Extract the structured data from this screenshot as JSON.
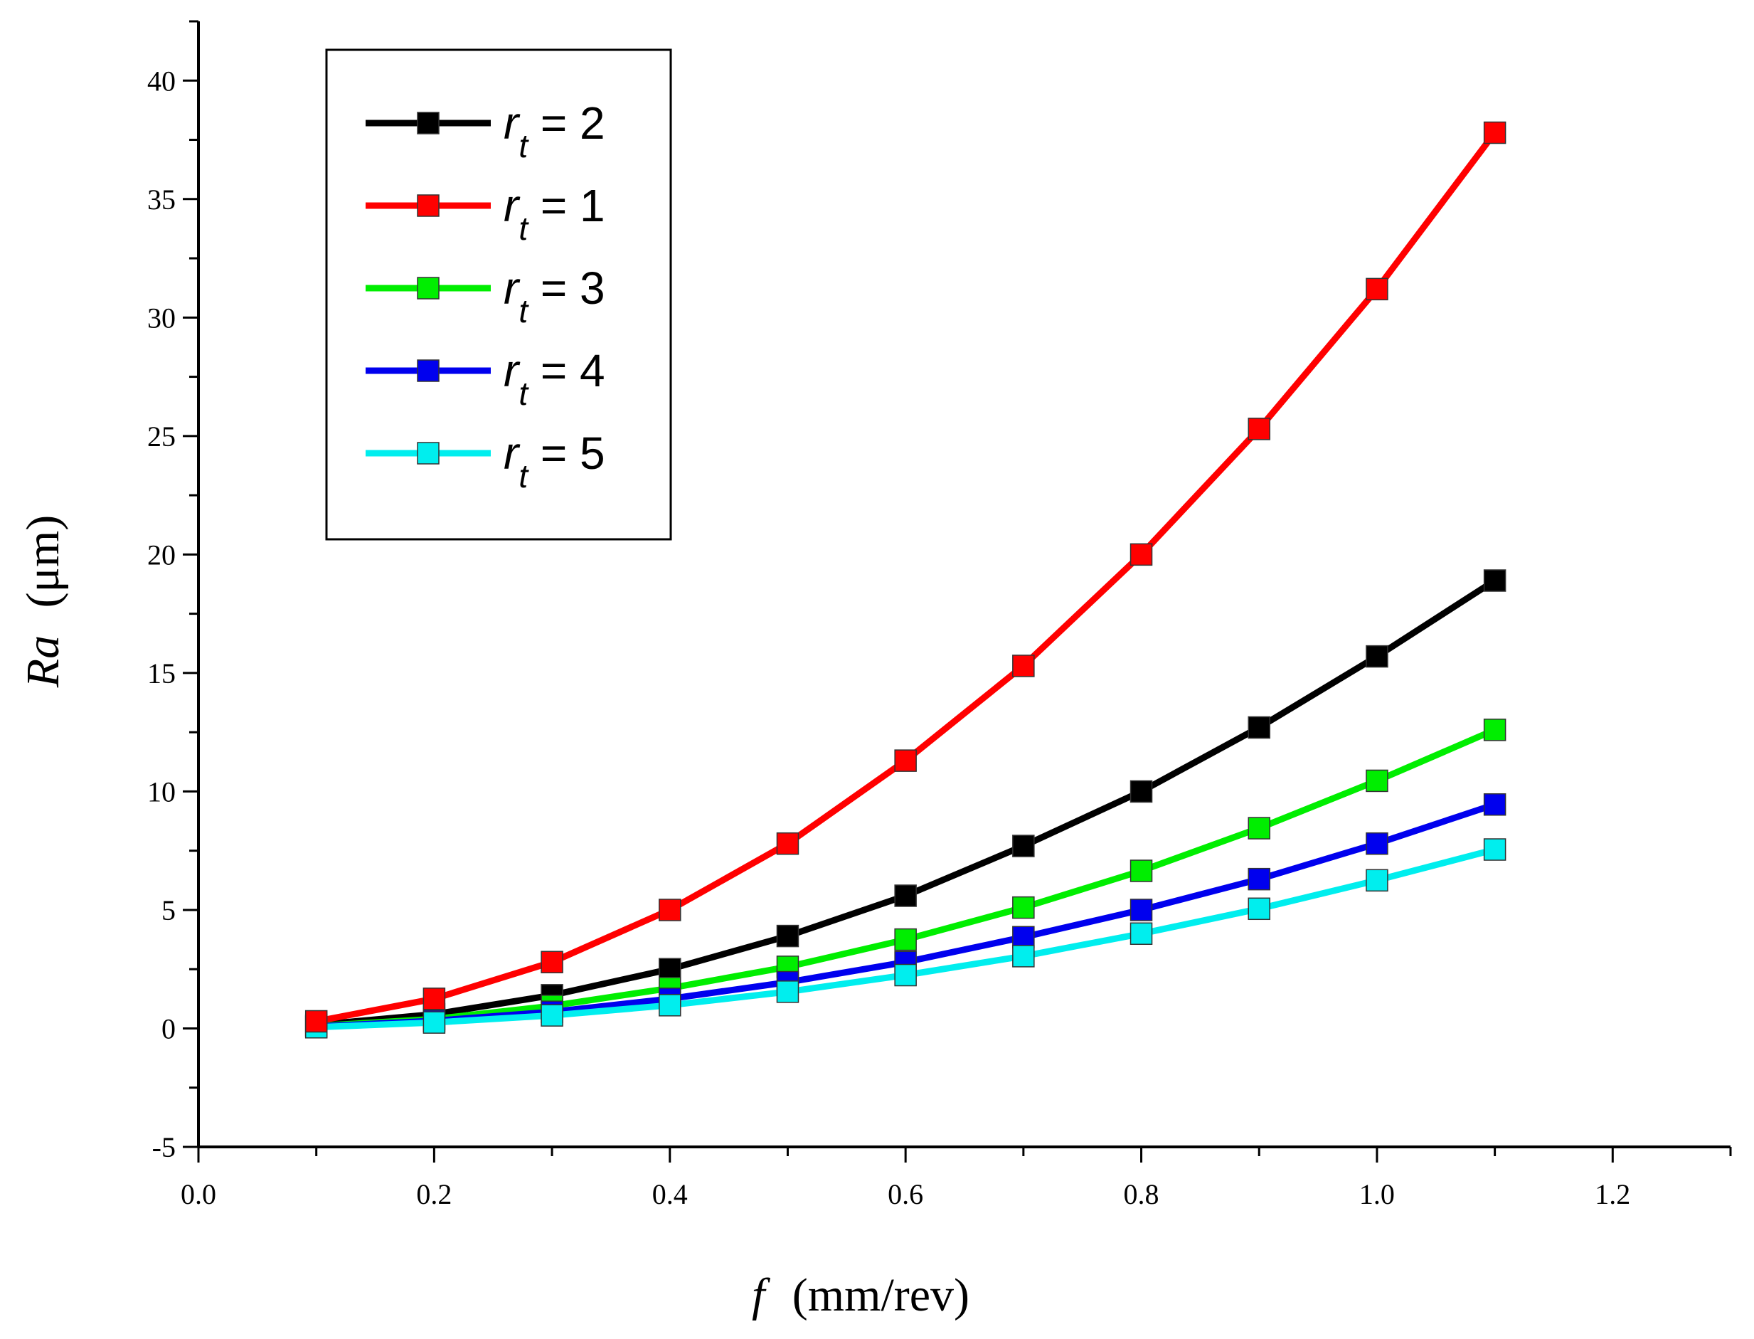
{
  "chart_data": {
    "type": "line",
    "title": "",
    "xlabel": {
      "symbol": "f",
      "unit": "(mm/rev)"
    },
    "ylabel": {
      "symbol": "Ra",
      "unit": "(μm)"
    },
    "xlim": [
      0.0,
      1.3
    ],
    "ylim": [
      -5,
      42.5
    ],
    "x_ticks": [
      0.0,
      0.2,
      0.4,
      0.6,
      0.8,
      1.0,
      1.2
    ],
    "x_tick_labels": [
      "0.0",
      "0.2",
      "0.4",
      "0.6",
      "0.8",
      "1.0",
      "1.2"
    ],
    "y_ticks": [
      -5,
      0,
      5,
      10,
      15,
      20,
      25,
      30,
      35,
      40
    ],
    "y_tick_labels": [
      "-5",
      "0",
      "5",
      "10",
      "15",
      "20",
      "25",
      "30",
      "35",
      "40"
    ],
    "grid": false,
    "legend_position": "top-left",
    "x": [
      0.1,
      0.2,
      0.3,
      0.4,
      0.5,
      0.6,
      0.7,
      0.8,
      0.9,
      1.0,
      1.1
    ],
    "series": [
      {
        "name": "r_t = 2",
        "legend_symbol": "r",
        "legend_subscript": "t",
        "legend_value": " = 2",
        "color": "#000000",
        "values": [
          0.15,
          0.6,
          1.4,
          2.5,
          3.9,
          5.6,
          7.7,
          10.0,
          12.7,
          15.7,
          18.9
        ]
      },
      {
        "name": "r_t = 1",
        "legend_symbol": "r",
        "legend_subscript": "t",
        "legend_value": " = 1",
        "color": "#ff0000",
        "values": [
          0.3,
          1.25,
          2.8,
          5.0,
          7.8,
          11.3,
          15.3,
          20.0,
          25.3,
          31.2,
          37.8
        ]
      },
      {
        "name": "r_t = 3",
        "legend_symbol": "r",
        "legend_subscript": "t",
        "legend_value": " = 3",
        "color": "#00ee00",
        "values": [
          0.1,
          0.4,
          0.95,
          1.7,
          2.6,
          3.75,
          5.1,
          6.65,
          8.45,
          10.45,
          12.6
        ]
      },
      {
        "name": "r_t = 4",
        "legend_symbol": "r",
        "legend_subscript": "t",
        "legend_value": " = 4",
        "color": "#0000ee",
        "values": [
          0.08,
          0.32,
          0.7,
          1.25,
          1.95,
          2.8,
          3.85,
          5.0,
          6.3,
          7.8,
          9.45
        ]
      },
      {
        "name": "r_t = 5",
        "legend_symbol": "r",
        "legend_subscript": "t",
        "legend_value": " = 5",
        "color": "#00eeee",
        "values": [
          0.05,
          0.25,
          0.55,
          0.98,
          1.55,
          2.25,
          3.05,
          4.0,
          5.05,
          6.25,
          7.55
        ]
      }
    ],
    "draw_order": [
      0,
      2,
      3,
      4,
      1
    ]
  }
}
